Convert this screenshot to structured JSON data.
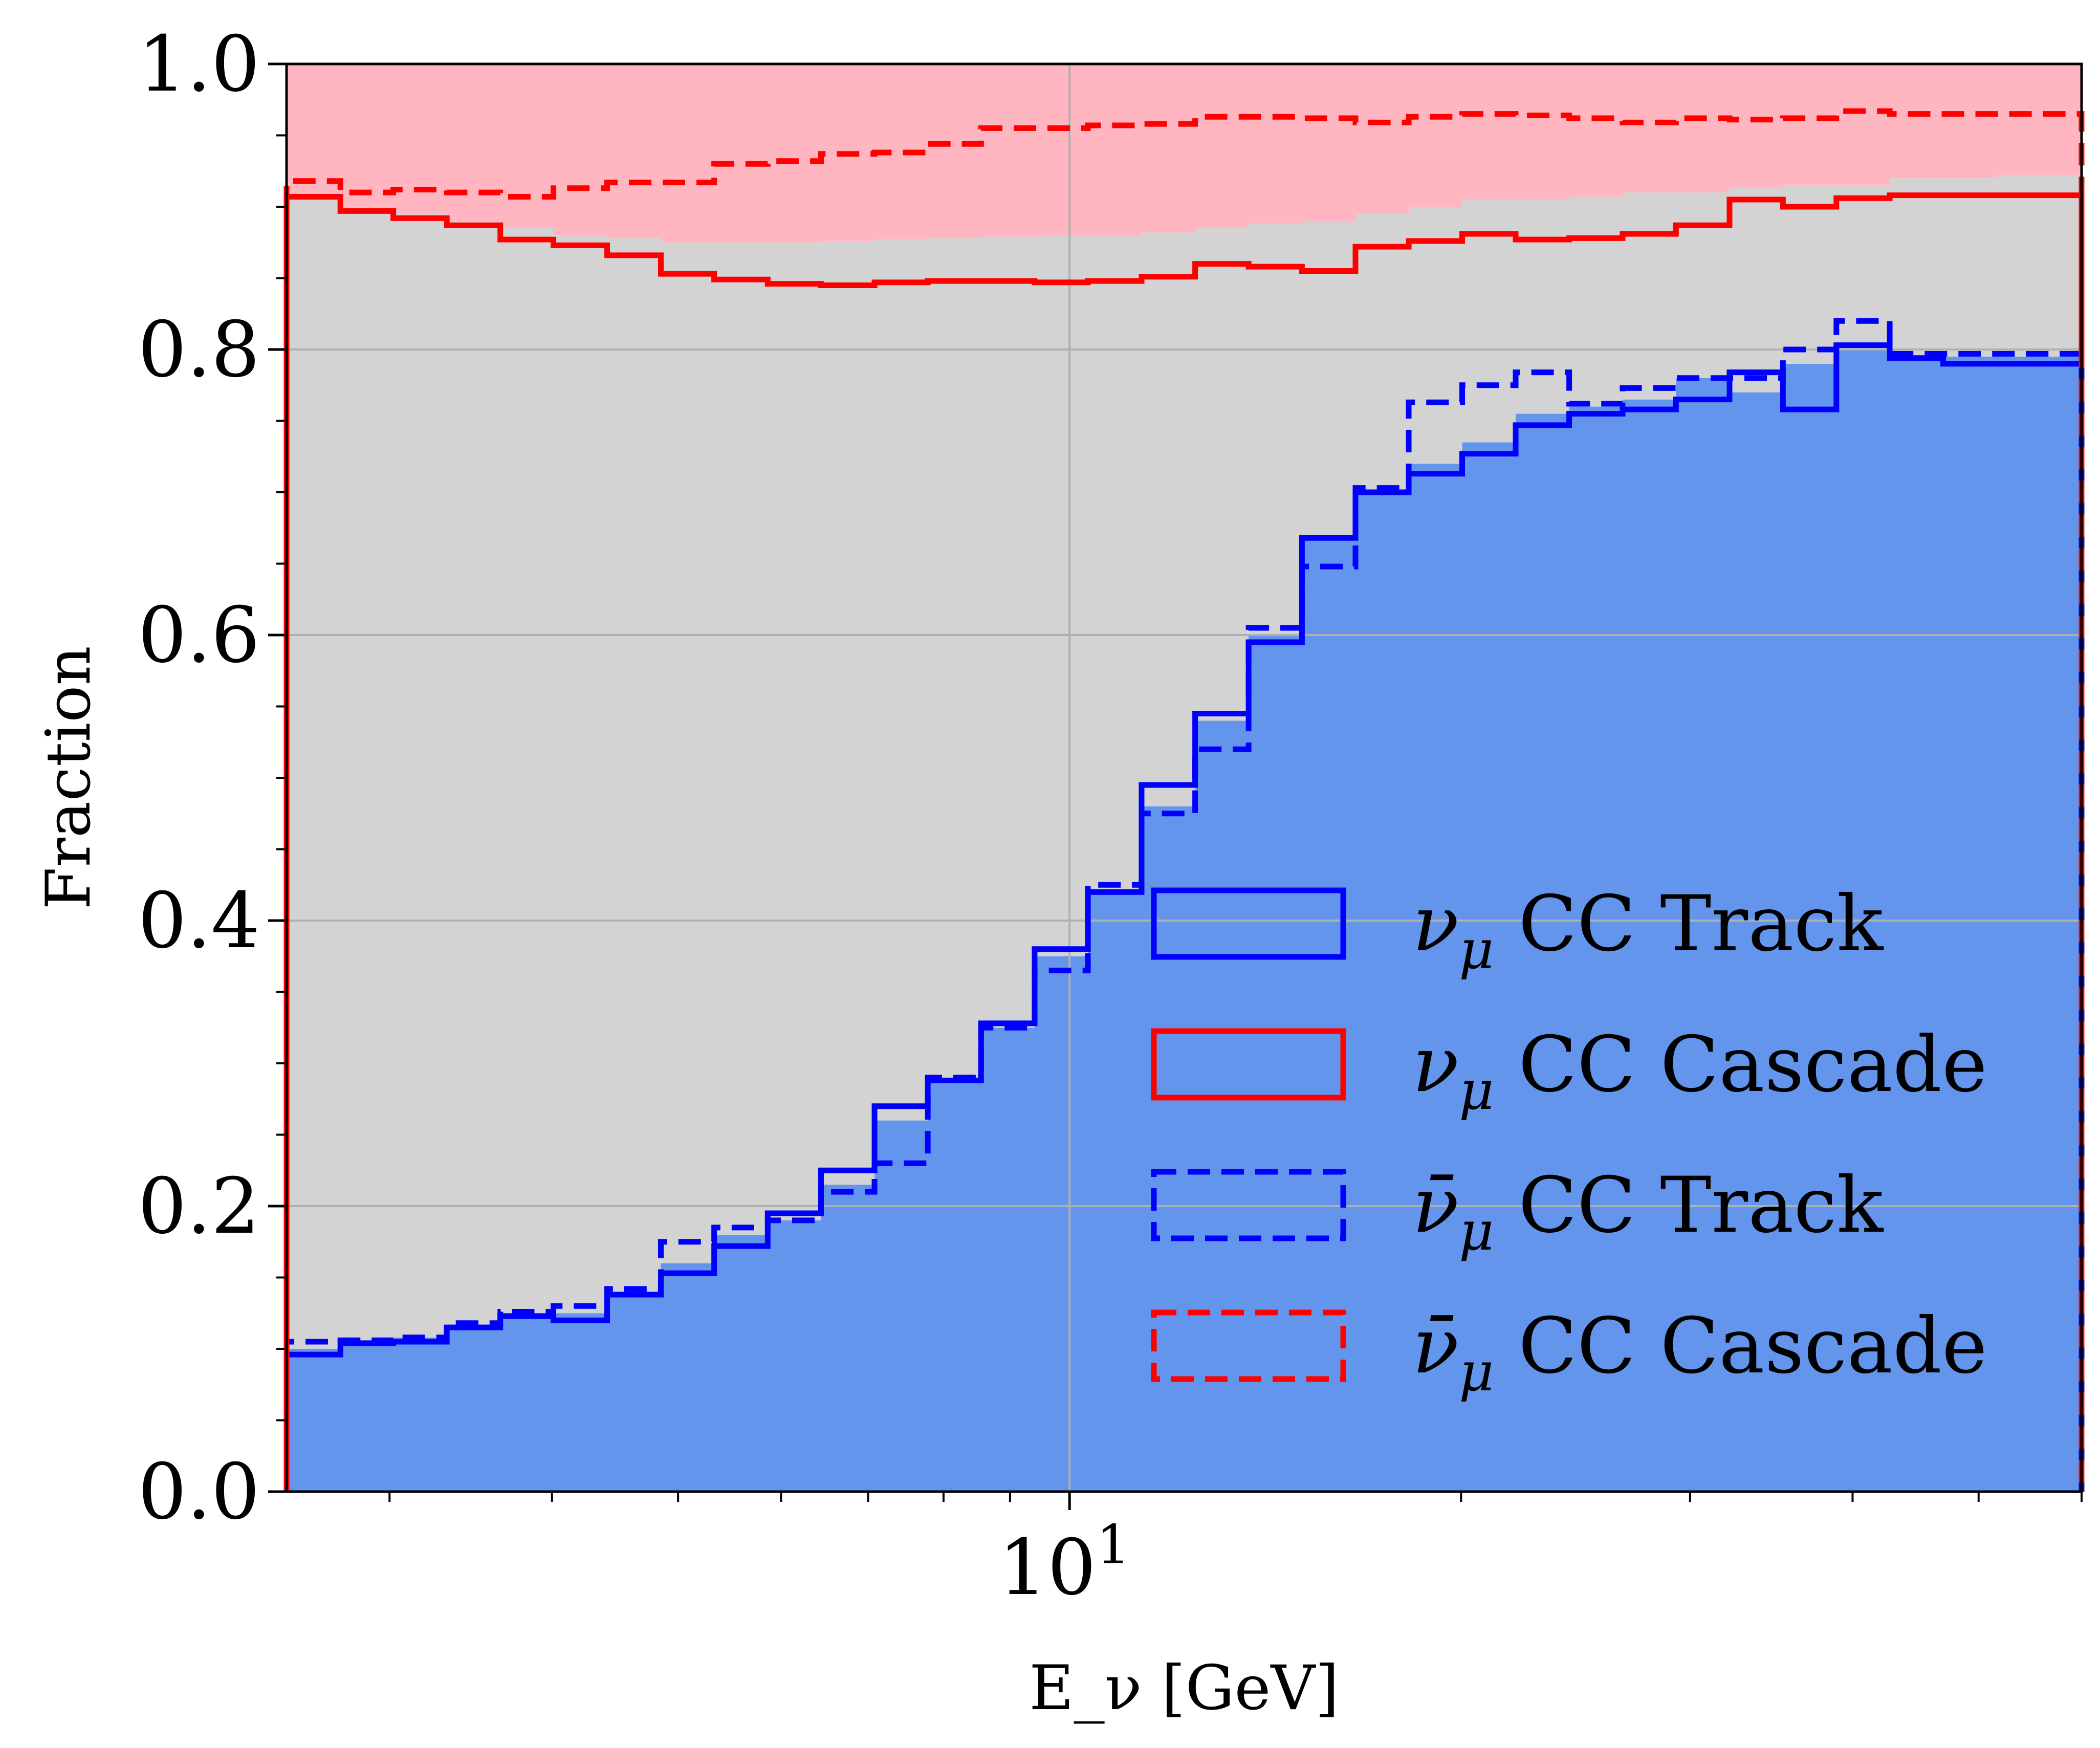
{
  "chart_data": {
    "type": "histogram-step",
    "x_scale": "log",
    "xlim": [
      2.5,
      60
    ],
    "ylim": [
      0,
      1
    ],
    "xlabel": "E_ν [GeV]",
    "ylabel": "Fraction",
    "x_ticks": [
      {
        "value": 10,
        "label": "10",
        "exponent": "1"
      }
    ],
    "y_ticks": [
      {
        "value": 0.0,
        "label": "0.0"
      },
      {
        "value": 0.2,
        "label": "0.2"
      },
      {
        "value": 0.4,
        "label": "0.4"
      },
      {
        "value": 0.6,
        "label": "0.6"
      },
      {
        "value": 0.8,
        "label": "0.8"
      },
      {
        "value": 1.0,
        "label": "1.0"
      }
    ],
    "grid": true,
    "legend_position": "lower-right",
    "colors": {
      "track_fill": "#6495ed",
      "middle_fill": "#d3d3d3",
      "cascade_fill": "#ffb6c1",
      "track_line": "#0000ff",
      "cascade_line": "#ff0000",
      "grid": "#b0b0b0"
    },
    "bin_edges": [
      2.5,
      2.75,
      3.02,
      3.32,
      3.65,
      4.01,
      4.41,
      4.85,
      5.33,
      5.86,
      6.44,
      7.08,
      7.78,
      8.55,
      9.4,
      10.33,
      11.36,
      12.49,
      13.73,
      15.09,
      16.59,
      18.23,
      20.04,
      22.03,
      24.22,
      26.62,
      29.26,
      32.17,
      35.36,
      38.87,
      42.72,
      46.96,
      51.62,
      56.74,
      60.0
    ],
    "fill_track_boundary": [
      0.1,
      0.105,
      0.108,
      0.117,
      0.122,
      0.125,
      0.14,
      0.16,
      0.18,
      0.19,
      0.215,
      0.26,
      0.29,
      0.325,
      0.375,
      0.42,
      0.48,
      0.54,
      0.6,
      0.67,
      0.7,
      0.72,
      0.735,
      0.755,
      0.76,
      0.765,
      0.78,
      0.77,
      0.79,
      0.8,
      0.795,
      0.795,
      0.795,
      0.795
    ],
    "fill_cascade_boundary": [
      0.905,
      0.9,
      0.895,
      0.89,
      0.885,
      0.88,
      0.878,
      0.875,
      0.875,
      0.875,
      0.876,
      0.877,
      0.878,
      0.879,
      0.88,
      0.88,
      0.882,
      0.885,
      0.888,
      0.89,
      0.895,
      0.9,
      0.905,
      0.905,
      0.907,
      0.91,
      0.91,
      0.913,
      0.915,
      0.915,
      0.92,
      0.92,
      0.922,
      0.922
    ],
    "series": [
      {
        "name": "ν_μ CC Track",
        "color": "#0000ff",
        "dashed": false,
        "values": [
          0.096,
          0.104,
          0.105,
          0.115,
          0.123,
          0.12,
          0.138,
          0.153,
          0.172,
          0.195,
          0.225,
          0.27,
          0.288,
          0.328,
          0.38,
          0.42,
          0.495,
          0.545,
          0.595,
          0.668,
          0.7,
          0.713,
          0.727,
          0.747,
          0.755,
          0.758,
          0.765,
          0.784,
          0.758,
          0.803,
          0.794,
          0.79,
          0.79,
          0.79
        ]
      },
      {
        "name": "ν_μ CC Cascade",
        "color": "#ff0000",
        "dashed": false,
        "values": [
          0.907,
          0.897,
          0.892,
          0.887,
          0.877,
          0.873,
          0.866,
          0.853,
          0.849,
          0.846,
          0.845,
          0.847,
          0.848,
          0.848,
          0.847,
          0.848,
          0.851,
          0.86,
          0.858,
          0.855,
          0.872,
          0.876,
          0.881,
          0.877,
          0.878,
          0.881,
          0.887,
          0.905,
          0.9,
          0.906,
          0.908,
          0.908,
          0.908,
          0.908
        ]
      },
      {
        "name": "ν̄_μ CC Track",
        "color": "#0000ff",
        "dashed": true,
        "values": [
          0.105,
          0.106,
          0.108,
          0.118,
          0.126,
          0.13,
          0.142,
          0.175,
          0.185,
          0.19,
          0.21,
          0.23,
          0.29,
          0.325,
          0.365,
          0.425,
          0.475,
          0.52,
          0.605,
          0.648,
          0.703,
          0.763,
          0.775,
          0.784,
          0.762,
          0.773,
          0.78,
          0.78,
          0.8,
          0.82,
          0.797,
          0.797,
          0.797,
          0.797
        ]
      },
      {
        "name": "ν̄_μ CC Cascade",
        "color": "#ff0000",
        "dashed": true,
        "values": [
          0.918,
          0.91,
          0.912,
          0.91,
          0.907,
          0.913,
          0.917,
          0.917,
          0.93,
          0.932,
          0.937,
          0.938,
          0.944,
          0.955,
          0.955,
          0.957,
          0.958,
          0.963,
          0.963,
          0.962,
          0.959,
          0.963,
          0.965,
          0.964,
          0.962,
          0.959,
          0.962,
          0.961,
          0.962,
          0.967,
          0.965,
          0.965,
          0.965,
          0.965
        ]
      }
    ],
    "legend": [
      {
        "symbol": "ν",
        "sub": "μ",
        "bar": false,
        "text": " CC Track"
      },
      {
        "symbol": "ν",
        "sub": "μ",
        "bar": false,
        "text": " CC Cascade"
      },
      {
        "symbol": "ν̄",
        "sub": "μ",
        "bar": true,
        "text": " CC Track"
      },
      {
        "symbol": "ν̄",
        "sub": "μ",
        "bar": true,
        "text": " CC Cascade"
      }
    ]
  }
}
